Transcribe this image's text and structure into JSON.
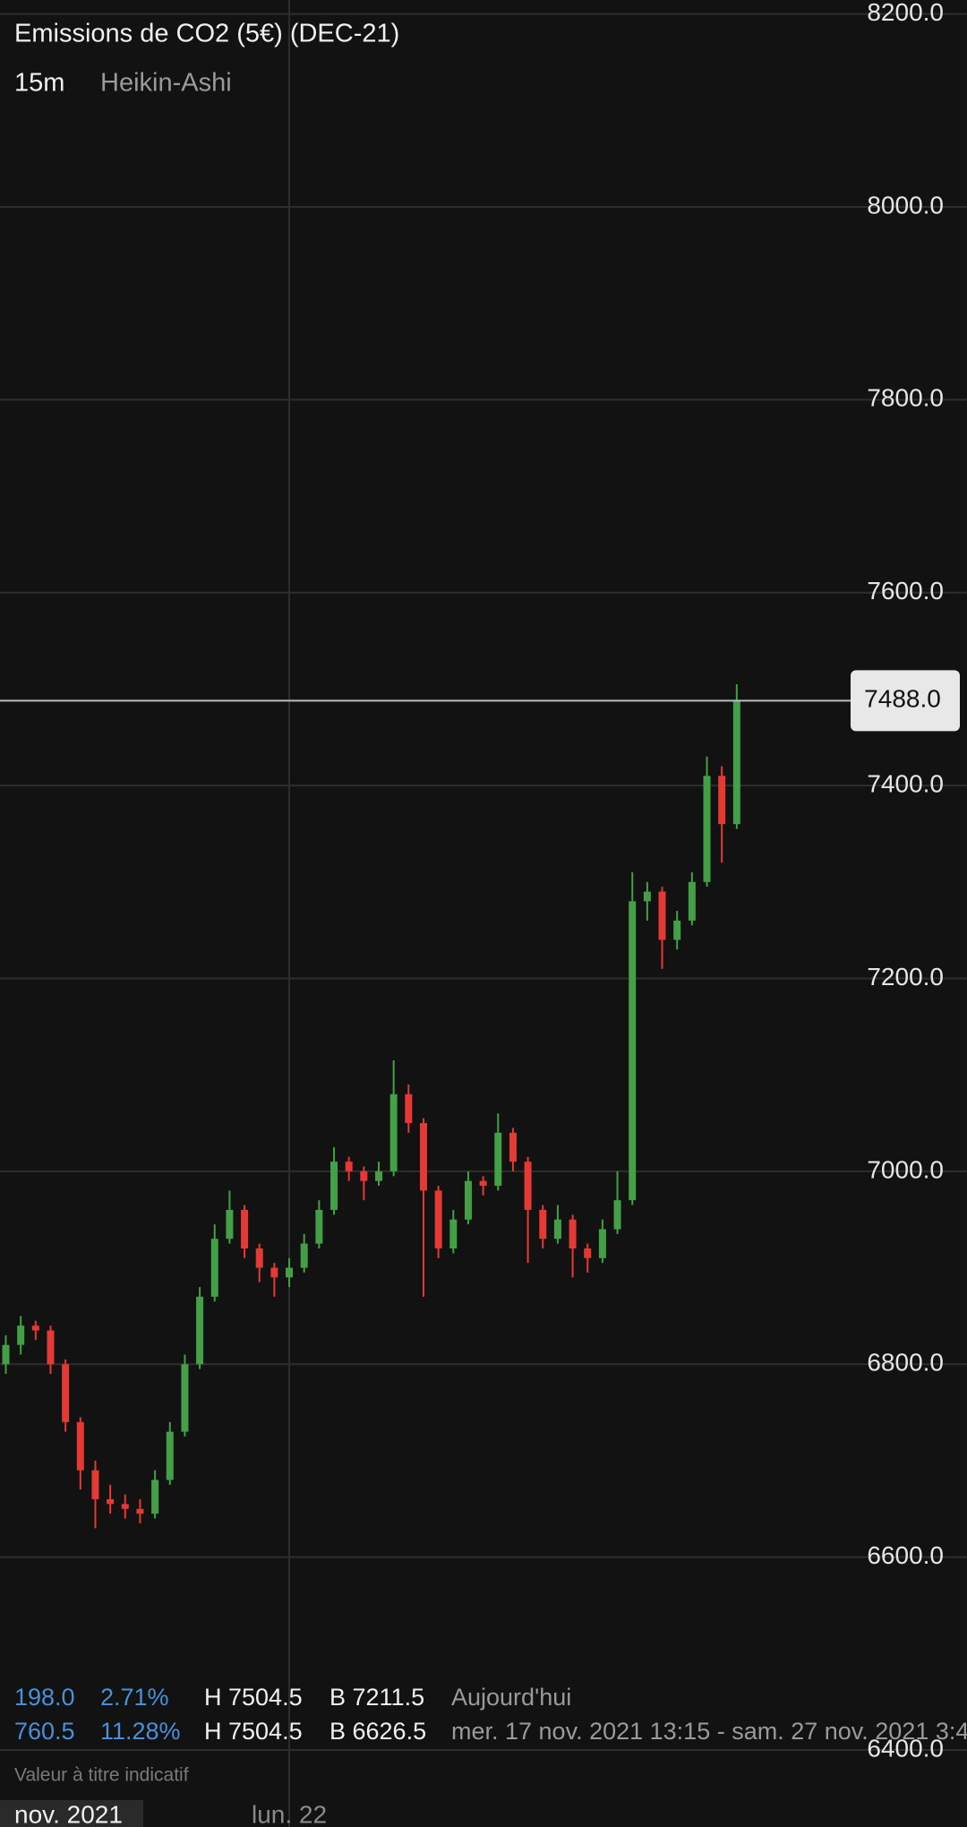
{
  "chart_data": {
    "type": "candlestick",
    "title": "Emissions de CO2 (5€) (DEC-21)",
    "interval": "15m",
    "style_label": "Heikin-Ashi",
    "up_color": "#43a047",
    "down_color": "#e53935",
    "grid": true,
    "ylim": [
      6400,
      8200
    ],
    "yticks": [
      {
        "value": 6400,
        "label": "6400.0"
      },
      {
        "value": 6600,
        "label": "6600.0"
      },
      {
        "value": 6800,
        "label": "6800.0"
      },
      {
        "value": 7000,
        "label": "7000.0"
      },
      {
        "value": 7200,
        "label": "7200.0"
      },
      {
        "value": 7400,
        "label": "7400.0"
      },
      {
        "value": 7600,
        "label": "7600.0"
      },
      {
        "value": 7800,
        "label": "7800.0"
      },
      {
        "value": 8000,
        "label": "8000.0"
      },
      {
        "value": 8200,
        "label": "8200.0"
      }
    ],
    "last_price": {
      "value": 7488,
      "label": "7488.0"
    },
    "period_label": "nov. 2021",
    "categories": [
      null,
      null,
      null,
      null,
      null,
      null,
      null,
      null,
      null,
      null,
      null,
      null,
      null,
      null,
      null,
      null,
      null,
      null,
      null,
      "lun. 22",
      null,
      null,
      null,
      null,
      null,
      null,
      null,
      null,
      null,
      null,
      null,
      null,
      null,
      null,
      null,
      null,
      null,
      null,
      null,
      null,
      null,
      null,
      null,
      null,
      null,
      null,
      null,
      null,
      null,
      null
    ],
    "open": [
      6800,
      6820,
      6840,
      6835,
      6800,
      6740,
      6690,
      6660,
      6655,
      6650,
      6645,
      6680,
      6730,
      6800,
      6870,
      6930,
      6960,
      6920,
      6900,
      6890,
      6900,
      6925,
      6960,
      7010,
      7000,
      6990,
      7000,
      7080,
      7050,
      6980,
      6920,
      6950,
      6990,
      6985,
      7040,
      7010,
      6960,
      6930,
      6950,
      6920,
      6910,
      6940,
      6970,
      7280,
      7290,
      7240,
      7260,
      7300,
      7410,
      7360
    ],
    "high": [
      6830,
      6850,
      6845,
      6840,
      6805,
      6745,
      6700,
      6675,
      6665,
      6660,
      6690,
      6740,
      6810,
      6880,
      6945,
      6980,
      6965,
      6925,
      6905,
      6910,
      6935,
      6970,
      7025,
      7015,
      7005,
      7010,
      7115,
      7090,
      7055,
      6985,
      6960,
      7000,
      6995,
      7060,
      7045,
      7015,
      6965,
      6965,
      6955,
      6925,
      6950,
      7000,
      7310,
      7300,
      7295,
      7270,
      7310,
      7430,
      7420,
      7505
    ],
    "low": [
      6790,
      6810,
      6825,
      6790,
      6730,
      6670,
      6630,
      6645,
      6640,
      6635,
      6640,
      6675,
      6725,
      6795,
      6865,
      6925,
      6910,
      6885,
      6870,
      6880,
      6895,
      6920,
      6955,
      6990,
      6970,
      6985,
      6995,
      7040,
      6870,
      6910,
      6915,
      6945,
      6975,
      6980,
      7000,
      6905,
      6920,
      6925,
      6890,
      6895,
      6905,
      6935,
      6965,
      7260,
      7210,
      7230,
      7255,
      7295,
      7320,
      7355
    ],
    "close": [
      6820,
      6840,
      6835,
      6800,
      6740,
      6690,
      6660,
      6655,
      6650,
      6645,
      6680,
      6730,
      6800,
      6870,
      6930,
      6960,
      6920,
      6900,
      6890,
      6900,
      6925,
      6960,
      7010,
      7000,
      6990,
      7000,
      7080,
      7050,
      6980,
      6920,
      6950,
      6990,
      6985,
      7040,
      7010,
      6960,
      6930,
      6950,
      6920,
      6910,
      6940,
      6970,
      7280,
      7290,
      7240,
      7260,
      7300,
      7410,
      7360,
      7488
    ],
    "info_rows": [
      [
        "198.0",
        "2.71%",
        "H 7504.5",
        "B 7211.5",
        "Aujourd'hui"
      ],
      [
        "760.5",
        "11.28%",
        "H 7504.5",
        "B 6626.5",
        "mer. 17 nov. 2021 13:15 - sam. 27 nov. 2021 3:4"
      ]
    ],
    "footnote": "Valeur à titre indicatif"
  }
}
